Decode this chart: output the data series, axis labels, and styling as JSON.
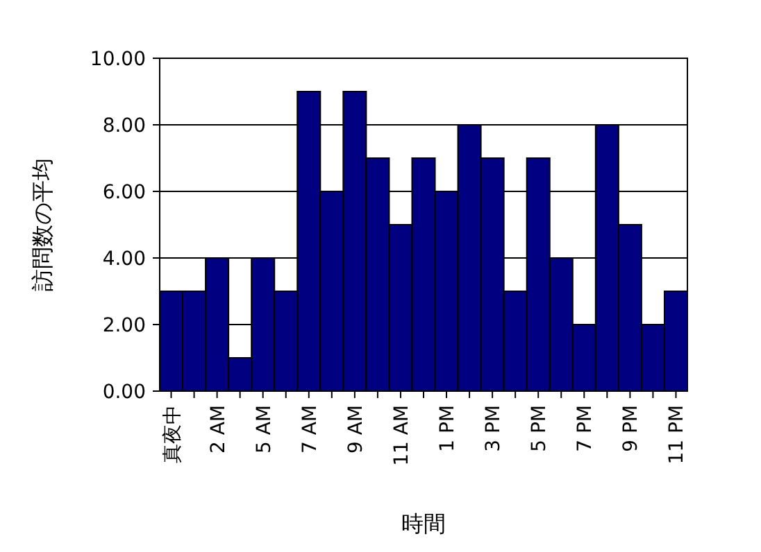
{
  "chart_data": {
    "type": "bar",
    "xlabel": "時間",
    "ylabel": "訪問数の平均",
    "categories": [
      "真夜中",
      null,
      "2 AM",
      null,
      "5 AM",
      null,
      "7 AM",
      null,
      "9 AM",
      null,
      "11 AM",
      null,
      "1 PM",
      null,
      "3 PM",
      null,
      "5 PM",
      null,
      "7 PM",
      null,
      "9 PM",
      null,
      "11 PM"
    ],
    "values": [
      3,
      3,
      4,
      1,
      4,
      3,
      9,
      6,
      9,
      7,
      5,
      7,
      6,
      8,
      7,
      3,
      7,
      4,
      2,
      8,
      5,
      2,
      3
    ],
    "color": "#000080",
    "ylim": [
      0,
      10
    ],
    "yticks": [
      {
        "value": 0,
        "label": "0.00"
      },
      {
        "value": 2,
        "label": "2.00"
      },
      {
        "value": 4,
        "label": "4.00"
      },
      {
        "value": 6,
        "label": "6.00"
      },
      {
        "value": 8,
        "label": "8.00"
      },
      {
        "value": 10,
        "label": "10.00"
      }
    ],
    "grid": "y"
  }
}
